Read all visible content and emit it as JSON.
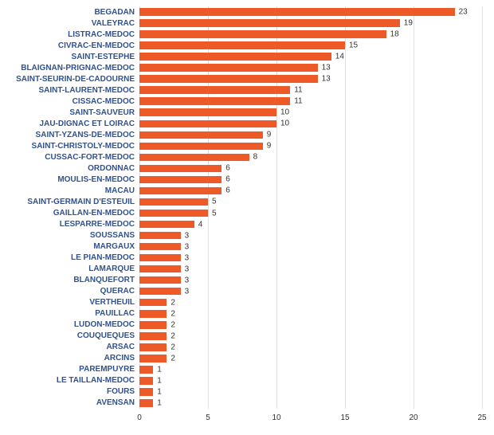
{
  "chart": {
    "type": "bar-horizontal",
    "background_color": "#ffffff",
    "grid_color": "#e0e0e0",
    "bar_color": "#ed5a28",
    "label_color": "#2f528f",
    "value_color": "#333333",
    "axis_color": "#333333",
    "label_fontsize": 10,
    "label_fontweight": 700,
    "value_fontsize": 10,
    "axis_fontsize": 10,
    "xlim": [
      0,
      25
    ],
    "xtick_step": 5,
    "xticks": [
      0,
      5,
      10,
      15,
      20,
      25
    ],
    "categories": [
      "BEGADAN",
      "VALEYRAC",
      "LISTRAC-MEDOC",
      "CIVRAC-EN-MEDOC",
      "SAINT-ESTEPHE",
      "BLAIGNAN-PRIGNAC-MEDOC",
      "SAINT-SEURIN-DE-CADOURNE",
      "SAINT-LAURENT-MEDOC",
      "CISSAC-MEDOC",
      "SAINT-SAUVEUR",
      "JAU-DIGNAC ET LOIRAC",
      "SAINT-YZANS-DE-MEDOC",
      "SAINT-CHRISTOLY-MEDOC",
      "CUSSAC-FORT-MEDOC",
      "ORDONNAC",
      "MOULIS-EN-MEDOC",
      "MACAU",
      "SAINT-GERMAIN D'ESTEUIL",
      "GAILLAN-EN-MEDOC",
      "LESPARRE-MEDOC",
      "SOUSSANS",
      "MARGAUX",
      "LE PIAN-MEDOC",
      "LAMARQUE",
      "BLANQUEFORT",
      "QUERAC",
      "VERTHEUIL",
      "PAUILLAC",
      "LUDON-MEDOC",
      "COUQUEQUES",
      "ARSAC",
      "ARCINS",
      "PAREMPUYRE",
      "LE TAILLAN-MEDOC",
      "FOURS",
      "AVENSAN"
    ],
    "values": [
      23,
      19,
      18,
      15,
      14,
      13,
      13,
      11,
      11,
      10,
      10,
      9,
      9,
      8,
      6,
      6,
      6,
      5,
      5,
      4,
      3,
      3,
      3,
      3,
      3,
      3,
      2,
      2,
      2,
      2,
      2,
      2,
      1,
      1,
      1,
      1
    ],
    "bar_thickness_ratio": 0.68
  }
}
